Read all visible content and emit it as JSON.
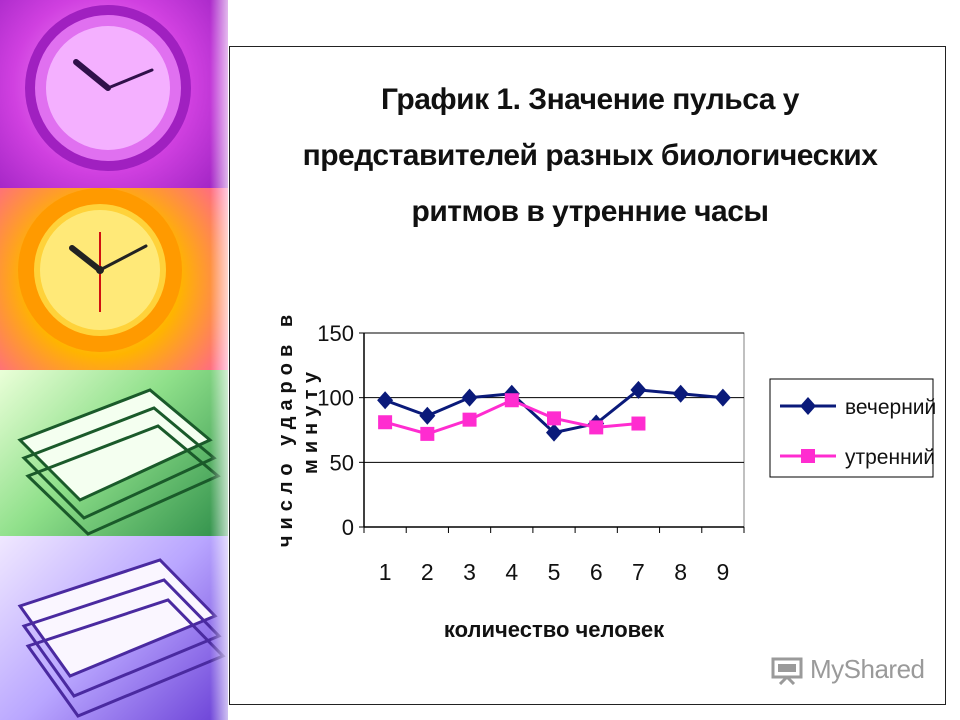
{
  "slide": {
    "title_lines": [
      "График 1. Значение пульса у",
      "представителей разных биологических",
      "ритмов в утренние часы"
    ],
    "logo_text": "MyShared"
  },
  "chart_data": {
    "type": "line",
    "title": "График 1. Значение пульса у представителей разных биологических ритмов в утренние часы",
    "xlabel": "количество человек",
    "ylabel": "число ударов в минуту",
    "categories": [
      "1",
      "2",
      "3",
      "4",
      "5",
      "6",
      "7",
      "8",
      "9"
    ],
    "yticks": [
      "0",
      "50",
      "100",
      "150"
    ],
    "ylim": [
      0,
      150
    ],
    "grid": true,
    "legend": "right",
    "series": [
      {
        "name": "вечерний",
        "color": "#0a1a7a",
        "marker": "diamond",
        "values": [
          98,
          86,
          100,
          103,
          73,
          80,
          106,
          103,
          100
        ]
      },
      {
        "name": "утренний",
        "color": "#ff2cd0",
        "marker": "square",
        "values": [
          81,
          72,
          83,
          98,
          84,
          77,
          80,
          null,
          null
        ]
      }
    ]
  }
}
